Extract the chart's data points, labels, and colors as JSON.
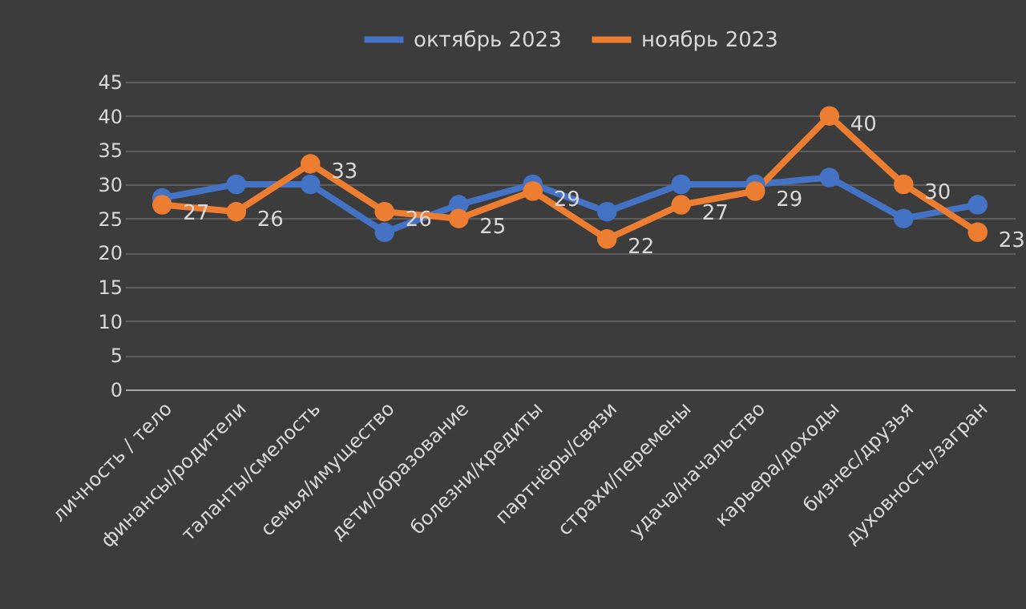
{
  "chart_data": {
    "type": "line",
    "categories": [
      "личность / тело",
      "финансы/родители",
      "таланты/смелость",
      "семья/имущество",
      "дети/образование",
      "болезни/кредиты",
      "партнёры/связи",
      "страхи/перемены",
      "удача/начальство",
      "карьера/доходы",
      "бизнес/друзья",
      "духовность/загран"
    ],
    "series": [
      {
        "name": "октябрь 2023",
        "color": "#4472c4",
        "values": [
          28,
          30,
          30,
          23,
          27,
          30,
          26,
          30,
          30,
          31,
          25,
          27
        ]
      },
      {
        "name": "ноябрь 2023",
        "color": "#ed7d31",
        "values": [
          27,
          26,
          33,
          26,
          25,
          29,
          22,
          27,
          29,
          40,
          30,
          23
        ],
        "value_labels": [
          "27",
          "26",
          "33",
          "26",
          "25",
          "29",
          "22",
          "27",
          "29",
          "40",
          "30",
          "23"
        ]
      }
    ],
    "ylim": [
      0,
      45
    ],
    "yticks": [
      0,
      5,
      10,
      15,
      20,
      25,
      30,
      35,
      40,
      45
    ],
    "grid": "y",
    "legend": "top",
    "marker": "circle",
    "line_style": "solid"
  }
}
